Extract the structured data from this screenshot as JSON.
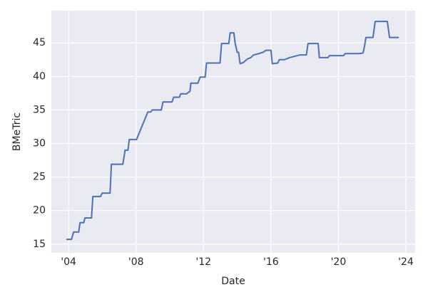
{
  "chart_data": {
    "type": "line",
    "xlabel": "Date",
    "ylabel": "BMeTric",
    "x": [
      2003.87,
      2004.17,
      2004.3,
      2004.6,
      2004.68,
      2004.9,
      2004.97,
      2005.36,
      2005.44,
      2005.9,
      2005.99,
      2006.46,
      2006.54,
      2007.22,
      2007.35,
      2007.52,
      2007.6,
      2008.03,
      2008.7,
      2008.87,
      2008.96,
      2009.5,
      2009.6,
      2010.14,
      2010.23,
      2010.57,
      2010.65,
      2011.0,
      2011.2,
      2011.25,
      2011.67,
      2011.8,
      2012.1,
      2012.18,
      2012.98,
      2013.07,
      2013.5,
      2013.58,
      2013.8,
      2013.88,
      2014.0,
      2014.08,
      2014.17,
      2014.38,
      2014.6,
      2014.8,
      2014.97,
      2015.27,
      2015.53,
      2015.7,
      2016.0,
      2016.08,
      2016.4,
      2016.5,
      2016.8,
      2017.1,
      2017.4,
      2017.7,
      2018.1,
      2018.2,
      2018.8,
      2018.87,
      2019.38,
      2019.47,
      2020.3,
      2020.4,
      2021.25,
      2021.46,
      2021.54,
      2021.63,
      2022.05,
      2022.18,
      2022.9,
      2023.03,
      2023.58
    ],
    "values": [
      15.7,
      15.7,
      16.8,
      16.8,
      18.2,
      18.2,
      18.9,
      18.9,
      22.1,
      22.1,
      22.6,
      22.6,
      26.9,
      26.9,
      29.0,
      29.0,
      30.6,
      30.6,
      34.7,
      34.7,
      35.0,
      35.0,
      36.2,
      36.2,
      36.9,
      36.9,
      37.4,
      37.4,
      37.8,
      39.0,
      39.0,
      39.9,
      39.9,
      42.0,
      42.0,
      44.9,
      44.9,
      46.5,
      46.5,
      44.9,
      43.6,
      43.6,
      41.9,
      42.1,
      42.6,
      42.8,
      43.2,
      43.4,
      43.6,
      43.9,
      43.9,
      41.9,
      42.0,
      42.5,
      42.5,
      42.8,
      43.0,
      43.2,
      43.2,
      44.9,
      44.9,
      42.8,
      42.8,
      43.1,
      43.1,
      43.4,
      43.4,
      43.5,
      44.4,
      45.8,
      45.8,
      48.2,
      48.2,
      45.8,
      45.8
    ],
    "color": "#4c72b0",
    "xlim": [
      2002.98,
      2024.55
    ],
    "ylim": [
      13.7,
      49.8
    ],
    "xticks": [
      {
        "value": 2004,
        "label": "'04"
      },
      {
        "value": 2008,
        "label": "'08"
      },
      {
        "value": 2012,
        "label": "'12"
      },
      {
        "value": 2016,
        "label": "'16"
      },
      {
        "value": 2020,
        "label": "'20"
      },
      {
        "value": 2024,
        "label": "'24"
      }
    ],
    "yticks": [
      15,
      20,
      25,
      30,
      35,
      40,
      45
    ],
    "grid": true
  }
}
